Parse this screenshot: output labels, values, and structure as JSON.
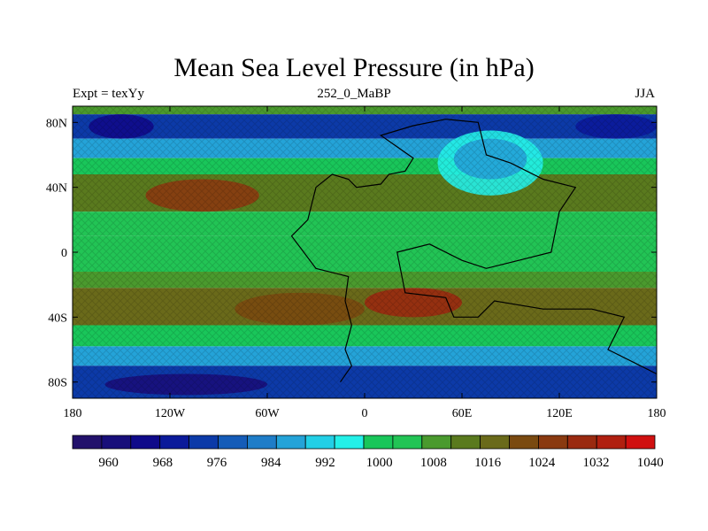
{
  "map": {
    "title": "Mean Sea Level Pressure (in hPa)",
    "left_label": "Expt = texYy",
    "center_label": "252_0_MaBP",
    "right_label": "JJA",
    "lon_ticks": [
      {
        "value": -180,
        "label": "180"
      },
      {
        "value": -120,
        "label": "120W"
      },
      {
        "value": -60,
        "label": "60W"
      },
      {
        "value": 0,
        "label": "0"
      },
      {
        "value": 60,
        "label": "60E"
      },
      {
        "value": 120,
        "label": "120E"
      },
      {
        "value": 180,
        "label": "180"
      }
    ],
    "lat_ticks": [
      {
        "value": 80,
        "label": "80N"
      },
      {
        "value": 40,
        "label": "40N"
      },
      {
        "value": 0,
        "label": "0"
      },
      {
        "value": -40,
        "label": "40S"
      },
      {
        "value": -80,
        "label": "80S"
      }
    ],
    "lon_range": [
      -180,
      180
    ],
    "lat_range": [
      -90,
      90
    ]
  },
  "colorbar": {
    "colors": [
      "#22116b",
      "#180e7a",
      "#0f0a8a",
      "#0b1a9a",
      "#0c3aa8",
      "#155cb8",
      "#1f7dc8",
      "#24a3d8",
      "#22cfe6",
      "#23f0e8",
      "#19c65a",
      "#22c455",
      "#4a9a2e",
      "#5a7a1e",
      "#6a6a1a",
      "#7a4a10",
      "#8a3a10",
      "#9a2a10",
      "#b02010",
      "#d01010"
    ],
    "labels": [
      {
        "index": 2,
        "text": "960"
      },
      {
        "index": 4,
        "text": "968"
      },
      {
        "index": 6,
        "text": "976"
      },
      {
        "index": 8,
        "text": "984"
      },
      {
        "index": 10,
        "text": "992"
      },
      {
        "index": 12,
        "text": "1000"
      },
      {
        "index": 14,
        "text": "1008"
      },
      {
        "index": 16,
        "text": "1016"
      },
      {
        "index": 18,
        "text": "1024"
      },
      {
        "index": 20,
        "text": "1032"
      },
      {
        "index": 22,
        "text": "1040"
      }
    ]
  },
  "pressure_bands": [
    {
      "lat_from": 90,
      "lat_to": 85,
      "hpa": 1004
    },
    {
      "lat_from": 85,
      "lat_to": 70,
      "hpa": 975
    },
    {
      "lat_from": 70,
      "lat_to": 58,
      "hpa": 985
    },
    {
      "lat_from": 58,
      "lat_to": 48,
      "hpa": 998
    },
    {
      "lat_from": 48,
      "lat_to": 25,
      "hpa": 1010
    },
    {
      "lat_from": 25,
      "lat_to": 10,
      "hpa": 1002
    },
    {
      "lat_from": 10,
      "lat_to": -12,
      "hpa": 1000
    },
    {
      "lat_from": -12,
      "lat_to": -22,
      "hpa": 1004
    },
    {
      "lat_from": -22,
      "lat_to": -45,
      "hpa": 1012
    },
    {
      "lat_from": -45,
      "lat_to": -58,
      "hpa": 998
    },
    {
      "lat_from": -58,
      "lat_to": -70,
      "hpa": 985
    },
    {
      "lat_from": -70,
      "lat_to": -90,
      "hpa": 972
    }
  ],
  "pressure_cells": [
    {
      "lon_from": -135,
      "lon_to": -65,
      "lat_from": 45,
      "lat_to": 25,
      "hpa": 1022
    },
    {
      "lon_from": -80,
      "lon_to": 0,
      "lat_from": -25,
      "lat_to": -45,
      "hpa": 1018
    },
    {
      "lon_from": 0,
      "lon_to": 60,
      "lat_from": -22,
      "lat_to": -40,
      "hpa": 1024
    },
    {
      "lon_from": 45,
      "lon_to": 110,
      "lat_from": 75,
      "lat_to": 35,
      "hpa": 992
    },
    {
      "lon_from": 55,
      "lon_to": 100,
      "lat_from": 70,
      "lat_to": 45,
      "hpa": 986
    },
    {
      "lon_from": -170,
      "lon_to": -130,
      "lat_from": 85,
      "lat_to": 70,
      "hpa": 966
    },
    {
      "lon_from": 130,
      "lon_to": 180,
      "lat_from": 85,
      "lat_to": 70,
      "hpa": 968
    },
    {
      "lon_from": -160,
      "lon_to": -60,
      "lat_from": -75,
      "lat_to": -88,
      "hpa": 962
    }
  ],
  "coastline": [
    [
      -15,
      -80
    ],
    [
      -8,
      -70
    ],
    [
      -12,
      -60
    ],
    [
      -8,
      -45
    ],
    [
      -12,
      -30
    ],
    [
      -10,
      -15
    ],
    [
      -30,
      -10
    ],
    [
      -45,
      10
    ],
    [
      -35,
      20
    ],
    [
      -30,
      40
    ],
    [
      -20,
      48
    ],
    [
      -10,
      45
    ],
    [
      -5,
      40
    ],
    [
      10,
      42
    ],
    [
      15,
      48
    ],
    [
      25,
      50
    ],
    [
      30,
      58
    ],
    [
      10,
      72
    ],
    [
      30,
      78
    ],
    [
      50,
      82
    ],
    [
      70,
      80
    ],
    [
      75,
      60
    ],
    [
      90,
      55
    ],
    [
      110,
      45
    ],
    [
      130,
      40
    ],
    [
      120,
      25
    ],
    [
      115,
      0
    ],
    [
      95,
      -5
    ],
    [
      75,
      -10
    ],
    [
      60,
      -5
    ],
    [
      40,
      5
    ],
    [
      20,
      0
    ],
    [
      25,
      -25
    ],
    [
      50,
      -28
    ],
    [
      55,
      -40
    ],
    [
      70,
      -40
    ],
    [
      80,
      -30
    ],
    [
      110,
      -35
    ],
    [
      140,
      -35
    ],
    [
      160,
      -40
    ],
    [
      150,
      -60
    ],
    [
      170,
      -70
    ],
    [
      180,
      -75
    ]
  ]
}
